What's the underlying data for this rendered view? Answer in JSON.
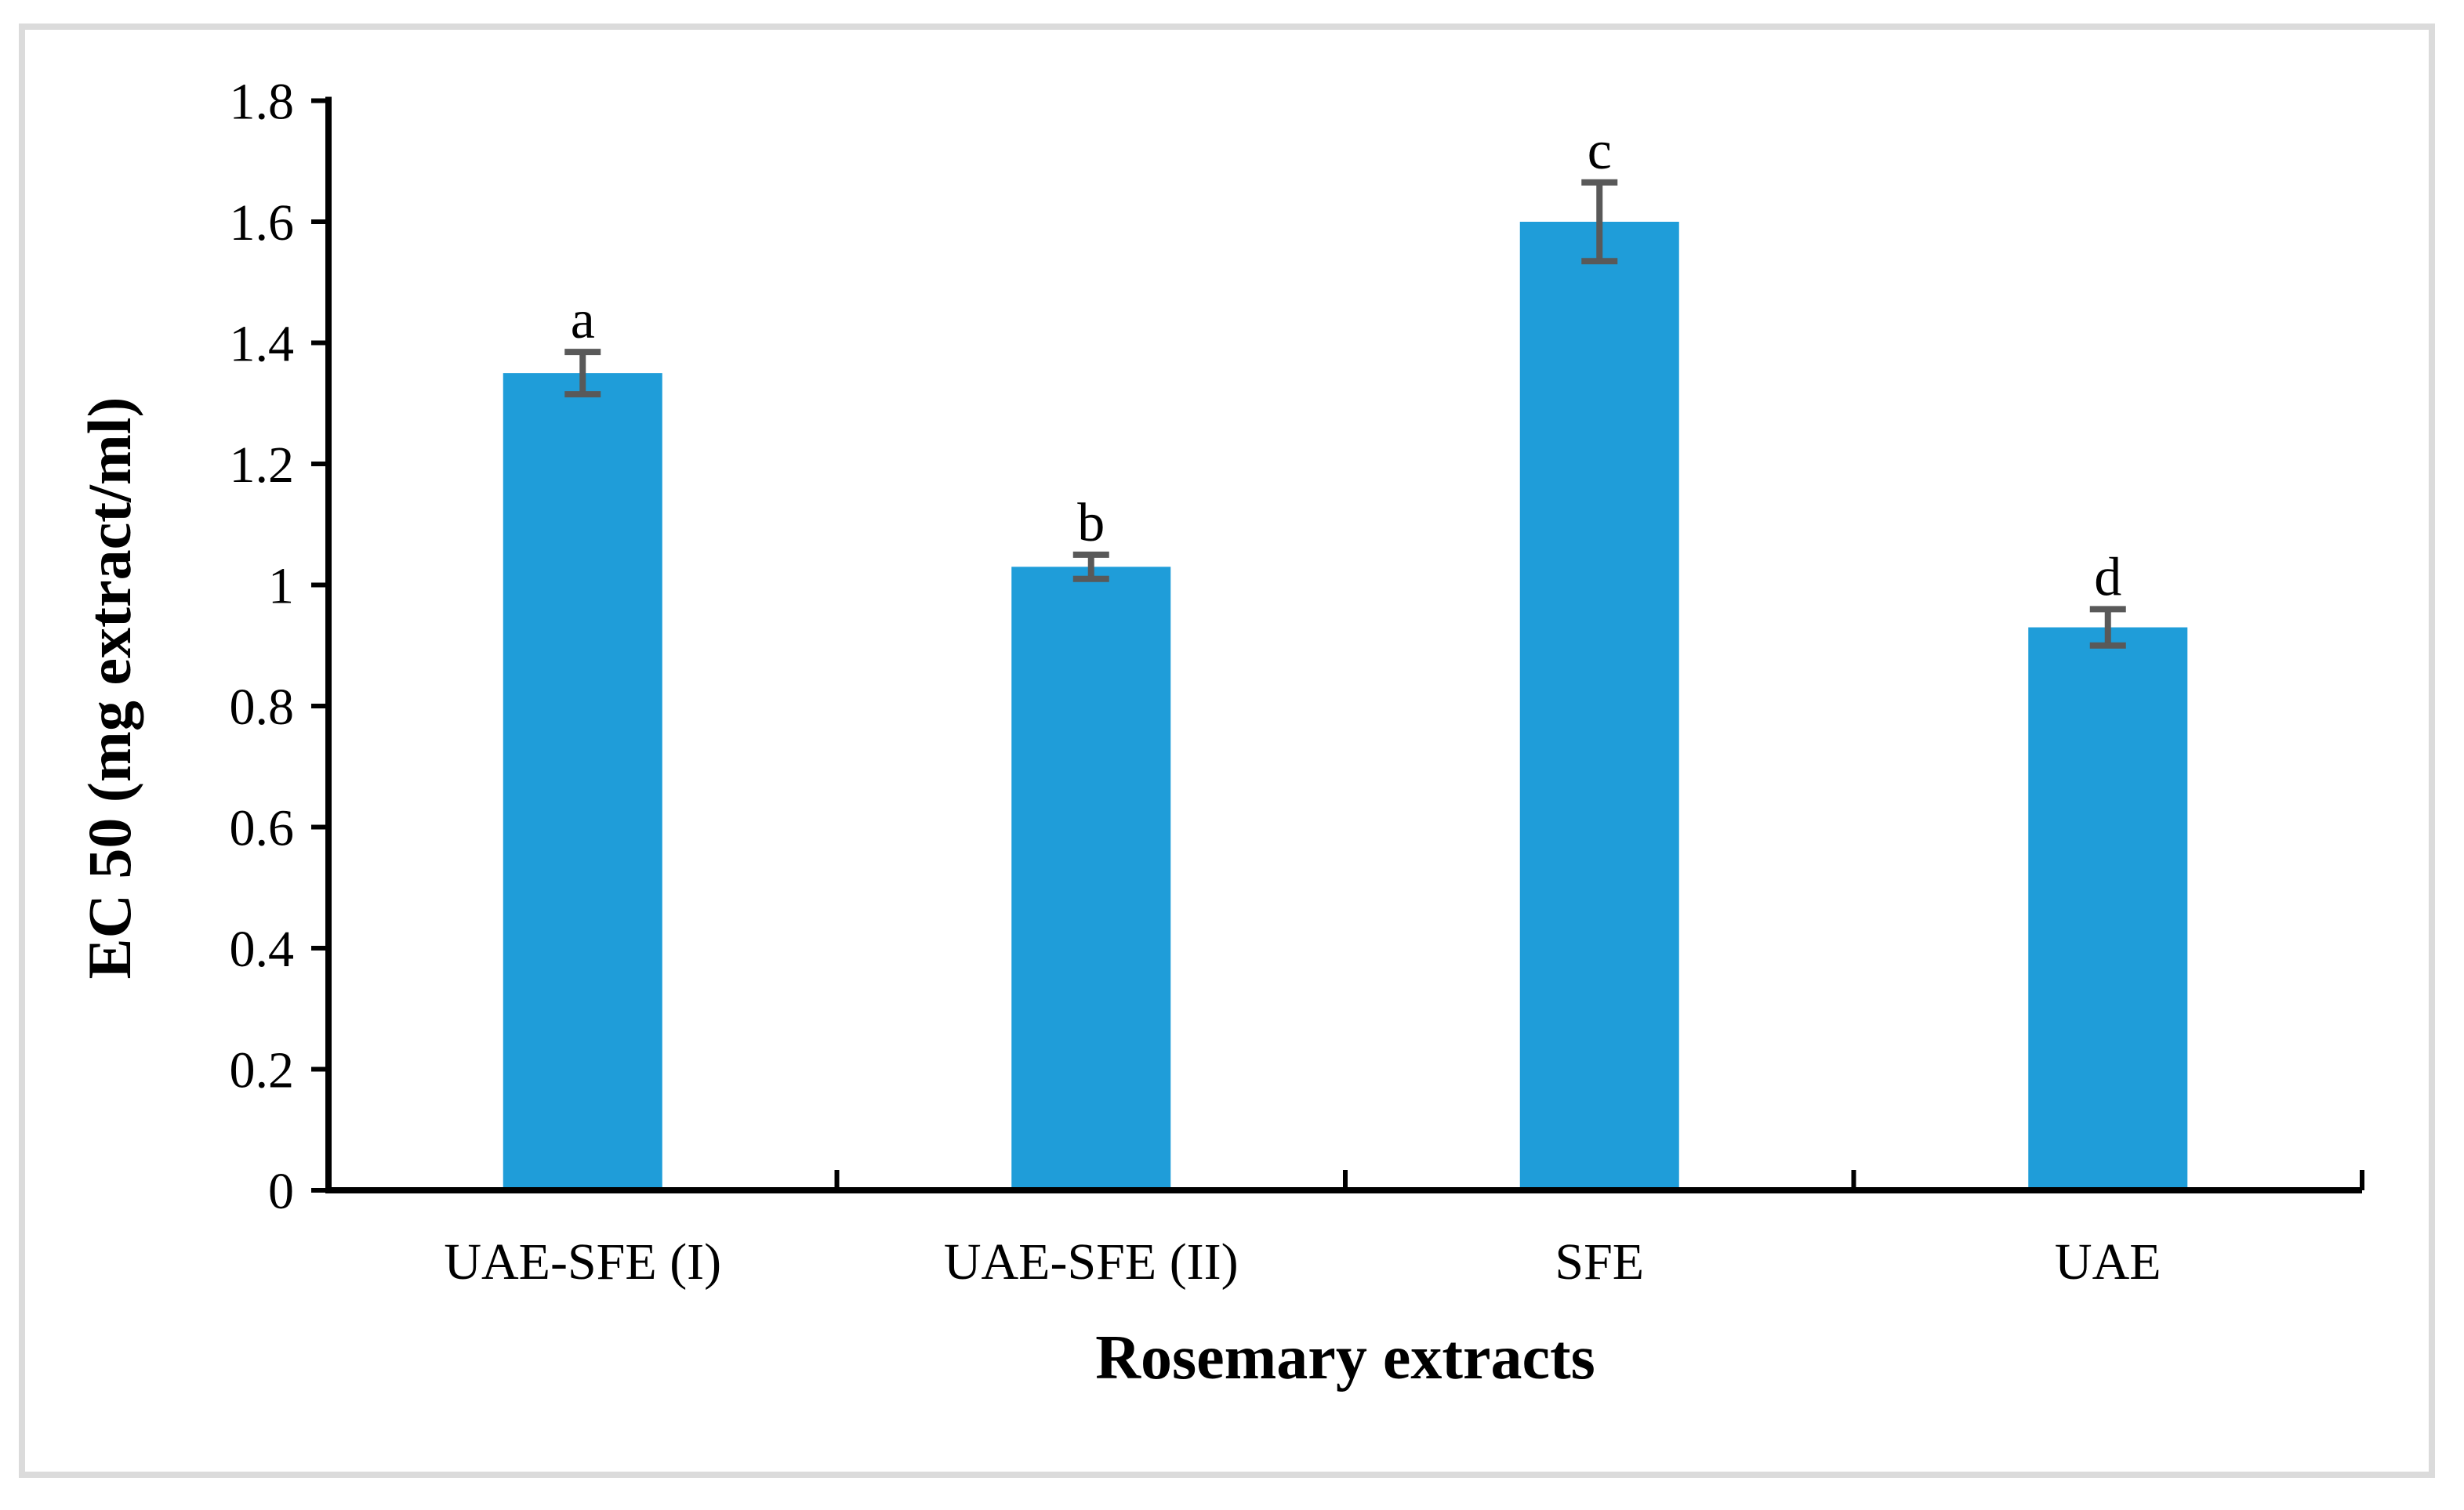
{
  "figure": {
    "background_color": "#ffffff",
    "frame_color": "#dbdbdb"
  },
  "chart_data": {
    "type": "bar",
    "title": "",
    "xlabel": "Rosemary extracts",
    "ylabel": "EC 50 (mg extract/ml)",
    "categories": [
      "UAE-SFE (I)",
      "UAE-SFE (II)",
      "SFE",
      "UAE"
    ],
    "values": [
      1.35,
      1.03,
      1.6,
      0.93
    ],
    "errors": [
      0.035,
      0.02,
      0.065,
      0.03
    ],
    "significance_letters": [
      "a",
      "b",
      "c",
      "d"
    ],
    "ylim": [
      0,
      1.8
    ],
    "ytick_step": 0.2,
    "ytick_labels": [
      "0",
      "0.2",
      "0.4",
      "0.6",
      "0.8",
      "1",
      "1.2",
      "1.4",
      "1.6",
      "1.8"
    ],
    "grid": "off",
    "legend": "none",
    "bar_color": "#1f9dd9",
    "error_bar_color": "#595959",
    "axis_color": "#000000",
    "text_color": "#000000"
  }
}
